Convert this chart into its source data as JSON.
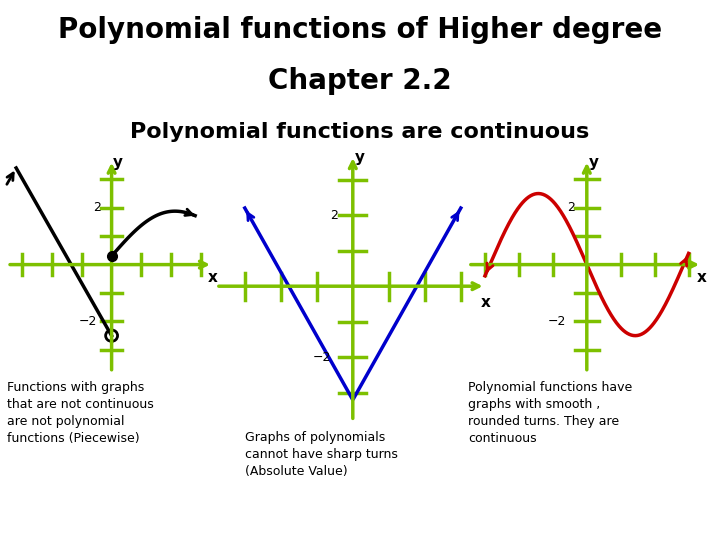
{
  "title_line1": "Polynomial functions of Higher degree",
  "title_line2": "Chapter 2.2",
  "subtitle": "Polynomial functions are continuous",
  "title_bg_color": "#ADD8E6",
  "bg_color": "#FFFFFF",
  "axis_color": "#7DC000",
  "text1": "Functions with graphs\nthat are not continuous\nare not polynomial\nfunctions (Piecewise)",
  "text2": "Graphs of polynomials\ncannot have sharp turns\n(Absolute Value)",
  "text3": "Polynomial functions have\ngraphs with smooth ,\nrounded turns. They are\ncontinuous",
  "curve1_color": "#000000",
  "curve2_color": "#0000CC",
  "curve3_color": "#CC0000",
  "title_fontsize": 20,
  "subtitle_fontsize": 16,
  "text_fontsize": 9
}
